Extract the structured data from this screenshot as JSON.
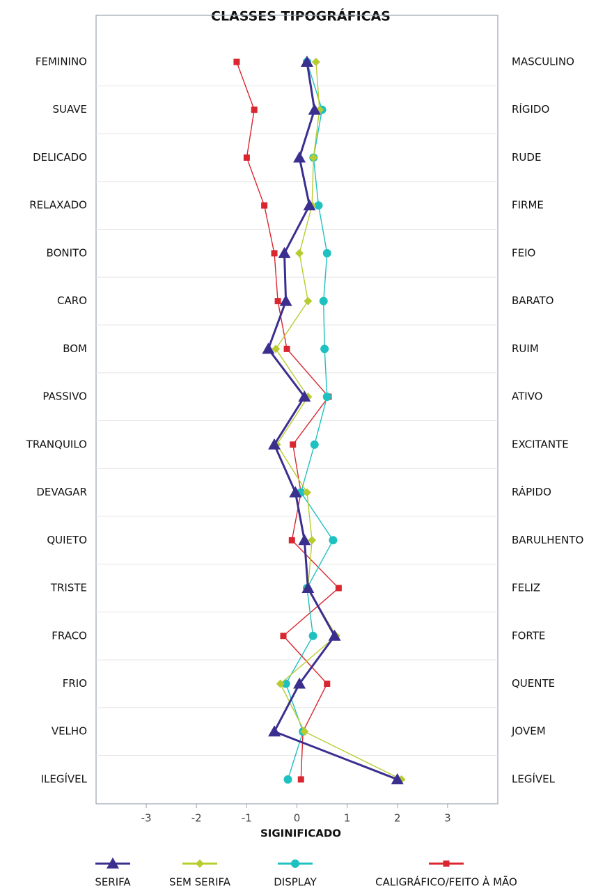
{
  "chart_data": {
    "type": "line",
    "title": "CLASSES TIPOGRÁFICAS",
    "x_label": "SIGINIFICADO",
    "categories": [
      "FEMININO",
      "SUAVE",
      "DELICADO",
      "RELAXADO",
      "BONITO",
      "CARO",
      "BOM",
      "PASSIVO",
      "TRANQUILO",
      "DEVAGAR",
      "QUIETO",
      "TRISTE",
      "FRACO",
      "FRIO",
      "VELHO",
      "ILEGÍVEL"
    ],
    "right_categories": [
      "MASCULINO",
      "RÍGIDO",
      "RUDE",
      "FIRME",
      "FEIO",
      "BARATO",
      "RUIM",
      "ATIVO",
      "EXCITANTE",
      "RÁPIDO",
      "BARULHENTO",
      "FELIZ",
      "FORTE",
      "QUENTE",
      "JOVEM",
      "LEGÍVEL"
    ],
    "xlim": [
      -4,
      4
    ],
    "xticks": [
      -3,
      -2,
      -1,
      0,
      1,
      2,
      3
    ],
    "series": [
      {
        "name": "SERIFA",
        "color": "#3a2f8f",
        "marker": "triangle",
        "values": [
          0.2,
          0.35,
          0.05,
          0.25,
          -0.25,
          -0.22,
          -0.57,
          0.15,
          -0.45,
          -0.03,
          0.15,
          0.22,
          0.75,
          0.05,
          -0.45,
          2.0
        ]
      },
      {
        "name": "SEM SERIFA",
        "color": "#b8cc2e",
        "marker": "diamond",
        "values": [
          0.38,
          0.45,
          0.33,
          0.3,
          0.05,
          0.22,
          -0.42,
          0.22,
          -0.4,
          0.2,
          0.3,
          0.22,
          0.78,
          -0.33,
          0.15,
          2.08
        ]
      },
      {
        "name": "DISPLAY",
        "color": "#1fc0c0",
        "marker": "circle",
        "values": [
          0.2,
          0.5,
          0.33,
          0.43,
          0.6,
          0.53,
          0.55,
          0.6,
          0.35,
          0.08,
          0.72,
          0.2,
          0.32,
          -0.22,
          0.12,
          -0.18
        ]
      },
      {
        "name": "CALIGRÁFICO/FEITO À MÃO",
        "color": "#d9262f",
        "marker": "square",
        "values": [
          -1.2,
          -0.85,
          -1.0,
          -0.65,
          -0.45,
          -0.38,
          -0.2,
          0.63,
          -0.08,
          0.08,
          -0.1,
          0.83,
          -0.27,
          0.6,
          0.12,
          0.08
        ]
      }
    ]
  }
}
